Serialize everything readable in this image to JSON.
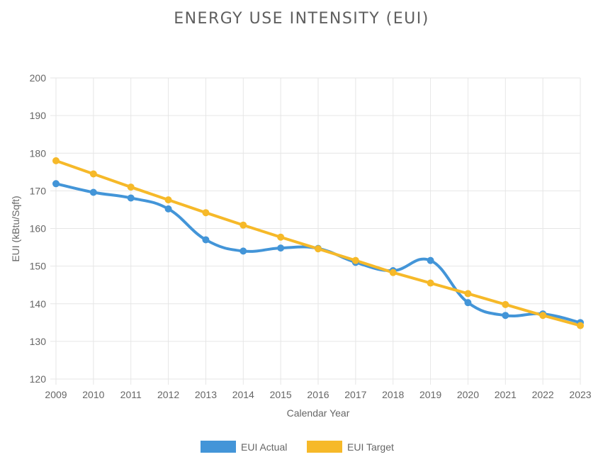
{
  "chart_data": {
    "type": "line",
    "title": "ENERGY USE INTENSITY (EUI)",
    "xlabel": "Calendar Year",
    "ylabel": "EUI (kBtu/Sqft)",
    "categories": [
      "2009",
      "2010",
      "2011",
      "2012",
      "2013",
      "2014",
      "2015",
      "2016",
      "2017",
      "2018",
      "2019",
      "2020",
      "2021",
      "2022",
      "2023"
    ],
    "ylim": [
      120,
      200
    ],
    "yticks": [
      "120",
      "130",
      "140",
      "150",
      "160",
      "170",
      "180",
      "190",
      "200"
    ],
    "grid": true,
    "legend_position": "bottom",
    "series": [
      {
        "name": "EUI Actual",
        "color": "#4395d8",
        "smooth": true,
        "values": [
          171.9,
          169.6,
          168.1,
          165.2,
          157.0,
          154.0,
          154.8,
          154.7,
          151.0,
          148.8,
          151.5,
          140.3,
          136.9,
          137.3,
          135.0
        ]
      },
      {
        "name": "EUI Target",
        "color": "#f6b929",
        "smooth": false,
        "values": [
          178.0,
          174.5,
          171.0,
          167.6,
          164.2,
          160.9,
          157.7,
          154.6,
          151.5,
          148.3,
          145.5,
          142.7,
          139.8,
          136.9,
          134.2
        ]
      }
    ]
  }
}
